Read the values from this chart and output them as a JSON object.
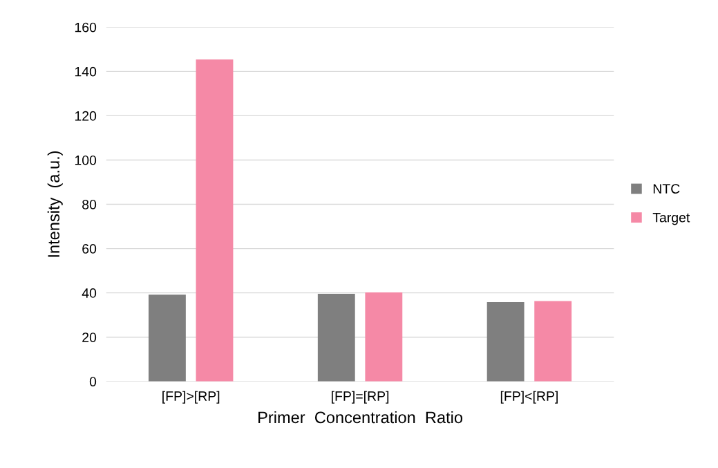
{
  "chart_data": {
    "type": "bar",
    "xlabel": "Primer  Concentration  Ratio",
    "ylabel": "Intensity  (a.u.)",
    "categories": [
      "[FP]>[RP]",
      "[FP]=[RP]",
      "[FP]<[RP]"
    ],
    "series": [
      {
        "name": "NTC",
        "color": "#7f7f7f",
        "values": [
          39.2,
          39.6,
          35.8
        ]
      },
      {
        "name": "Target",
        "color": "#f589a6",
        "values": [
          145.4,
          40.2,
          36.3
        ]
      }
    ],
    "ylim": [
      0,
      160
    ],
    "yticks": [
      0,
      20,
      40,
      60,
      80,
      100,
      120,
      140,
      160
    ],
    "grid": "y",
    "legend": "right"
  }
}
